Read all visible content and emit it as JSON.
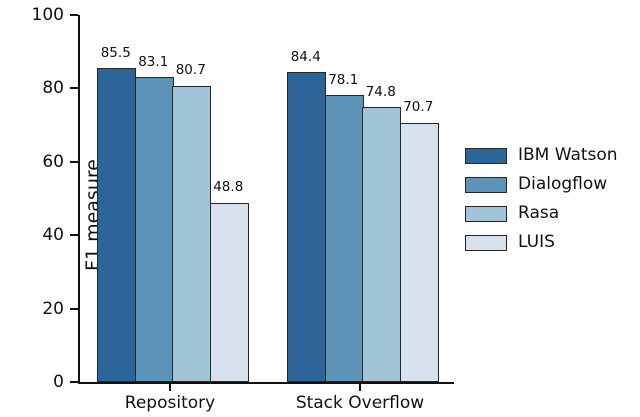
{
  "chart_data": {
    "type": "bar",
    "title": "",
    "xlabel": "",
    "ylabel": "F1 measure",
    "ylim": [
      0,
      100
    ],
    "y_ticks": [
      0,
      20,
      40,
      60,
      80,
      100
    ],
    "categories": [
      "Repository",
      "Stack Overflow"
    ],
    "series": [
      {
        "name": "IBM Watson",
        "color": "#2d6599",
        "values": [
          85.5,
          84.4
        ]
      },
      {
        "name": "Dialogflow",
        "color": "#5e93b8",
        "values": [
          83.1,
          78.1
        ]
      },
      {
        "name": "Rasa",
        "color": "#a2c4d9",
        "values": [
          80.7,
          74.8
        ]
      },
      {
        "name": "LUIS",
        "color": "#d8e2ee",
        "values": [
          48.8,
          70.7
        ]
      }
    ],
    "value_labels": [
      "85.5",
      "83.1",
      "80.7",
      "48.8",
      "84.4",
      "78.1",
      "74.8",
      "70.7"
    ],
    "legend_position": "right",
    "grid": false,
    "bar_edge_color": "#262626",
    "axis_color": "#111111"
  }
}
